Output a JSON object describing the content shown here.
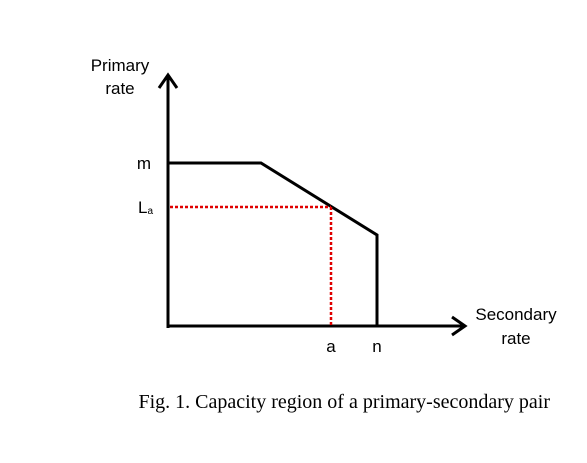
{
  "y_axis": {
    "label_line1": "Primary",
    "label_line2": "rate"
  },
  "x_axis": {
    "label_line1": "Secondary",
    "label_line2": "rate"
  },
  "ticks": {
    "m": "m",
    "La_main": "L",
    "La_sub": "a",
    "a": "a",
    "n": "n"
  },
  "caption": "Fig. 1. Capacity region of a primary-secondary pair",
  "colors": {
    "region": "#000000",
    "guides": "#e00000"
  }
}
